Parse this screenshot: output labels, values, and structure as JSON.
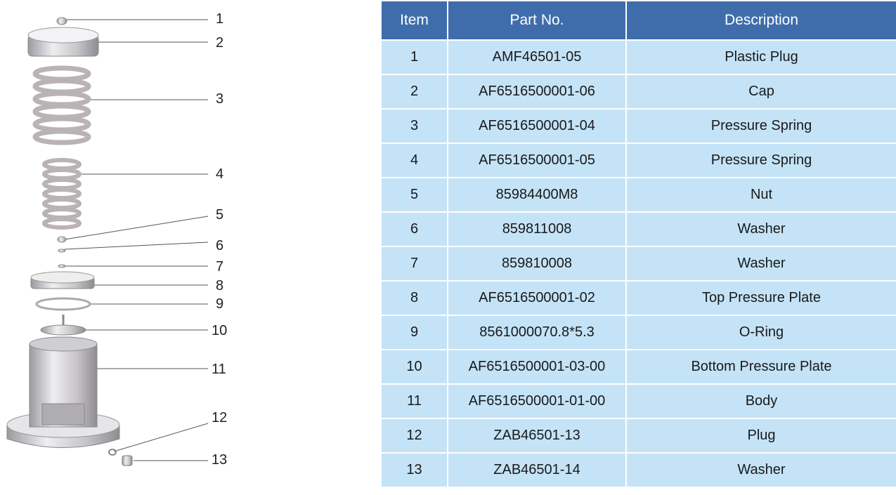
{
  "colors": {
    "header": "#3f6dab",
    "row": "#c4e3f7"
  },
  "table": {
    "headers": [
      "Item",
      "Part No.",
      "Description"
    ],
    "rows": [
      {
        "item": "1",
        "part_no": "AMF46501-05",
        "description": "Plastic Plug"
      },
      {
        "item": "2",
        "part_no": "AF6516500001-06",
        "description": "Cap"
      },
      {
        "item": "3",
        "part_no": "AF6516500001-04",
        "description": "Pressure Spring"
      },
      {
        "item": "4",
        "part_no": "AF6516500001-05",
        "description": "Pressure Spring"
      },
      {
        "item": "5",
        "part_no": "85984400M8",
        "description": "Nut"
      },
      {
        "item": "6",
        "part_no": "859811008",
        "description": "Washer"
      },
      {
        "item": "7",
        "part_no": "859810008",
        "description": "Washer"
      },
      {
        "item": "8",
        "part_no": "AF6516500001-02",
        "description": "Top Pressure Plate"
      },
      {
        "item": "9",
        "part_no": "8561000070.8*5.3",
        "description": "O-Ring"
      },
      {
        "item": "10",
        "part_no": "AF6516500001-03-00",
        "description": "Bottom Pressure Plate"
      },
      {
        "item": "11",
        "part_no": "AF6516500001-01-00",
        "description": "Body"
      },
      {
        "item": "12",
        "part_no": "ZAB46501-13",
        "description": "Plug"
      },
      {
        "item": "13",
        "part_no": "ZAB46501-14",
        "description": "Washer"
      }
    ]
  },
  "diagram": {
    "callouts": [
      "1",
      "2",
      "3",
      "4",
      "5",
      "6",
      "7",
      "8",
      "9",
      "10",
      "11",
      "12",
      "13"
    ]
  }
}
